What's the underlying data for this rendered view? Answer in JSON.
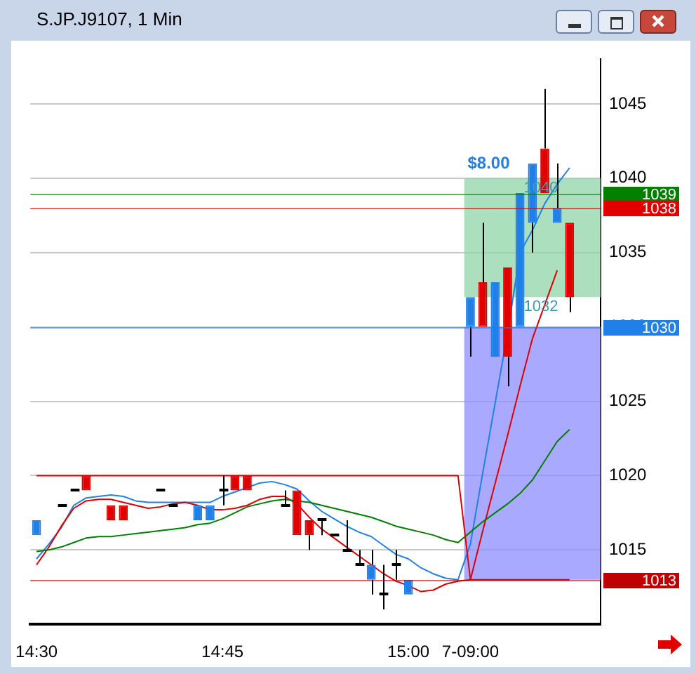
{
  "chart_data": {
    "type": "candlestick",
    "title": "S.JP.J9107, 1 Min",
    "categories": [
      "14:30",
      null,
      null,
      null,
      null,
      null,
      null,
      null,
      null,
      null,
      null,
      null,
      null,
      null,
      null,
      "14:45",
      null,
      null,
      null,
      null,
      null,
      null,
      null,
      null,
      null,
      null,
      null,
      null,
      null,
      null,
      "15:00",
      null,
      null,
      null,
      null,
      "7-09:00",
      null,
      null,
      null,
      null,
      null,
      null,
      null,
      null,
      null,
      null
    ],
    "ohlc": [
      [
        1016,
        1017,
        1016,
        1017
      ],
      null,
      [
        1018,
        1018,
        1018,
        1018
      ],
      [
        1019,
        1019,
        1019,
        1019
      ],
      [
        1020,
        1020,
        1019,
        1019
      ],
      null,
      [
        1018,
        1018,
        1017,
        1017
      ],
      [
        1018,
        1018,
        1017,
        1017
      ],
      null,
      null,
      [
        1019,
        1019,
        1019,
        1019
      ],
      [
        1018,
        1018,
        1018,
        1018
      ],
      null,
      [
        1017,
        1018,
        1017,
        1018
      ],
      [
        1017,
        1018,
        1017,
        1018
      ],
      [
        1019,
        1020,
        1018,
        1019
      ],
      [
        1020,
        1020,
        1019,
        1019
      ],
      [
        1020,
        1020,
        1019,
        1019
      ],
      null,
      null,
      [
        1018,
        1019,
        1018,
        1018
      ],
      [
        1019,
        1019,
        1016,
        1016
      ],
      [
        1017,
        1017,
        1015,
        1016
      ],
      [
        1017,
        1017,
        1016,
        1017
      ],
      [
        1016,
        1016,
        1016,
        1016
      ],
      [
        1015,
        1017,
        1015,
        1015
      ],
      [
        1014,
        1015,
        1014,
        1014
      ],
      [
        1013,
        1015,
        1012,
        1014
      ],
      [
        1012,
        1014,
        1011,
        1012
      ],
      [
        1014,
        1015,
        1013,
        1014
      ],
      [
        1012,
        1013,
        1012,
        1013
      ],
      null,
      null,
      null,
      null,
      [
        1030,
        1032,
        1028,
        1032
      ],
      [
        1033,
        1037,
        1030,
        1030
      ],
      [
        1028,
        1033,
        1028,
        1033
      ],
      [
        1034,
        1034,
        1026,
        1028
      ],
      [
        1030,
        1039,
        1030,
        1039
      ],
      [
        1037,
        1041,
        1035,
        1041
      ],
      [
        1042,
        1046,
        1039,
        1039
      ],
      [
        1037,
        1041,
        1037,
        1038
      ],
      [
        1037,
        1037,
        1031,
        1032
      ],
      null,
      null
    ],
    "colors": [
      "#2080e8",
      null,
      "#000000",
      "#000000",
      "#e00000",
      null,
      "#e00000",
      "#e00000",
      null,
      null,
      "#000000",
      "#000000",
      null,
      "#2080e8",
      "#2080e8",
      "#000000",
      "#e00000",
      "#e00000",
      null,
      null,
      "#000000",
      "#e00000",
      "#e00000",
      "#000000",
      "#000000",
      "#000000",
      "#000000",
      "#2080e8",
      "#000000",
      "#000000",
      "#2080e8",
      null,
      null,
      null,
      null,
      "#2080e8",
      "#e00000",
      "#2080e8",
      "#e00000",
      "#2080e8",
      "#2080e8",
      "#e00000",
      "#2080e8",
      "#e00000",
      null,
      null
    ],
    "series": [
      {
        "type": "line",
        "color": "#e00000",
        "values": [
          1020,
          1020,
          1020,
          1020,
          1020,
          1020,
          1020,
          1020,
          1020,
          1020,
          1020,
          1020,
          1020,
          1020,
          1020,
          1020,
          1020,
          1020,
          1020,
          1020,
          1020,
          1020,
          1020,
          1020,
          1020,
          1020,
          1020,
          1020,
          1020,
          1020,
          1020,
          1020,
          1020,
          1020,
          1020,
          1013,
          1013,
          1013,
          1013,
          1013,
          1013,
          1013,
          1013,
          1013,
          null,
          null
        ]
      },
      {
        "type": "line",
        "color": "#008000",
        "values": [
          1014.9,
          1015.0,
          1015.2,
          1015.5,
          1015.8,
          1015.9,
          1015.9,
          1016.0,
          1016.1,
          1016.2,
          1016.3,
          1016.4,
          1016.5,
          1016.7,
          1016.8,
          1017.1,
          1017.5,
          1017.9,
          1018.1,
          1018.3,
          1018.4,
          1018.3,
          1018.2,
          1018.0,
          1017.8,
          1017.6,
          1017.4,
          1017.2,
          1016.9,
          1016.6,
          1016.4,
          1016.2,
          1016.0,
          1015.7,
          1015.5,
          1016.2,
          1016.9,
          1017.5,
          1018.1,
          1018.8,
          1019.7,
          1021.0,
          1022.3,
          1023.1,
          null,
          null
        ]
      },
      {
        "type": "line",
        "color": "#e00000",
        "values": [
          1014.0,
          1015.2,
          1016.6,
          1017.8,
          1018.3,
          1018.4,
          1018.4,
          1018.2,
          1018.0,
          1017.8,
          1017.9,
          1018.1,
          1018.2,
          1018.0,
          1017.7,
          1017.7,
          1017.8,
          1018.0,
          1018.4,
          1018.6,
          1018.6,
          1018.1,
          1017.2,
          1016.4,
          1015.8,
          1015.2,
          1014.6,
          1014.0,
          1013.4,
          1012.9,
          1012.6,
          1012.2,
          1012.3,
          1012.7,
          1012.9,
          1013.0,
          1016.3,
          1019.5,
          1022.7,
          1026.0,
          1029.2,
          1031.5,
          1033.8,
          null,
          null,
          null
        ]
      },
      {
        "type": "line",
        "color": "#2080e8",
        "values": [
          1014.4,
          1015.4,
          1016.5,
          1018.0,
          1018.5,
          1018.6,
          1018.7,
          1018.6,
          1018.3,
          1018.2,
          1018.2,
          1018.2,
          1018.2,
          1018.2,
          1018.2,
          1018.6,
          1018.9,
          1019.2,
          1019.5,
          1019.6,
          1019.4,
          1019.1,
          1018.3,
          1017.6,
          1017.1,
          1016.6,
          1016.2,
          1015.9,
          1015.3,
          1014.7,
          1014.4,
          1013.8,
          1013.4,
          1013.1,
          1013.0,
          1015.4,
          1020.2,
          1024.9,
          1029.6,
          1035.0,
          1036.5,
          1038.3,
          1039.6,
          1040.7,
          null,
          null
        ]
      }
    ],
    "ylim": [
      1010,
      1048
    ],
    "yticks": [
      1015,
      1020,
      1025,
      1030,
      1035,
      1040,
      1045
    ],
    "grid": "y",
    "ref_lines": [
      {
        "axis": "y",
        "value": 1039,
        "label": "1039",
        "color": "#008000"
      },
      {
        "axis": "y",
        "value": 1038,
        "label": "1038",
        "color": "#e00000"
      },
      {
        "axis": "y",
        "value": 1030,
        "label": "1030",
        "color": "#2080e8"
      },
      {
        "axis": "y",
        "value": 1013,
        "label": "1013",
        "color": "#c00000"
      }
    ],
    "bands": [
      {
        "axis": "y",
        "from": 1013,
        "to": 1030,
        "color": "#8c8cff"
      },
      {
        "axis": "y",
        "from": 1032,
        "to": 1040,
        "color": "#8fd4a8"
      }
    ],
    "annotations": [
      "$8.00",
      {
        "text": "1040",
        "y": 1040
      },
      {
        "text": "1032",
        "y": 1032
      }
    ]
  }
}
